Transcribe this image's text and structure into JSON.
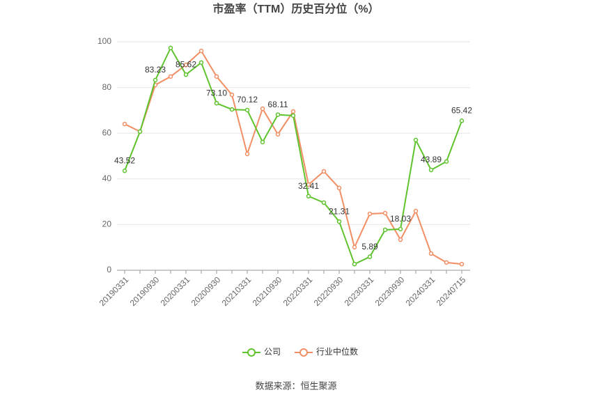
{
  "chart_data": {
    "type": "line",
    "title": "市盈率（TTM）历史百分位（%）",
    "source": "数据来源：恒生聚源",
    "categories": [
      "20190331",
      null,
      "20190930",
      null,
      "20200331",
      null,
      "20200930",
      null,
      "20210331",
      null,
      "20210930",
      null,
      "20220331",
      null,
      "20220930",
      null,
      "20230331",
      null,
      "20230930",
      null,
      "20240331",
      null,
      "20240715"
    ],
    "series": [
      {
        "name": "公司",
        "color": "#5fc32e",
        "values": [
          43.52,
          60.7,
          83.23,
          97.3,
          85.62,
          90.9,
          73.1,
          70.4,
          70.12,
          56.1,
          68.11,
          67.7,
          32.41,
          29.6,
          21.31,
          2.7,
          5.89,
          17.7,
          18.03,
          57.0,
          43.89,
          47.6,
          65.42
        ],
        "value_labels": [
          "43.52",
          null,
          "83.23",
          null,
          "85.62",
          null,
          "73.10",
          null,
          "70.12",
          null,
          "68.11",
          null,
          "32.41",
          null,
          "21.31",
          null,
          "5.89",
          null,
          "18.03",
          null,
          "43.89",
          null,
          "65.42"
        ]
      },
      {
        "name": "行业中位数",
        "color": "#f28e63",
        "values": [
          64.0,
          60.7,
          81.1,
          84.8,
          89.9,
          96.0,
          84.8,
          76.8,
          50.9,
          70.7,
          59.5,
          69.5,
          37.5,
          43.3,
          36.0,
          10.1,
          24.7,
          25.0,
          13.4,
          25.9,
          7.3,
          3.4,
          2.7
        ]
      }
    ],
    "ylim": [
      0,
      100
    ],
    "yticks": [
      0,
      20,
      40,
      60,
      80,
      100
    ],
    "grid": true,
    "legend": "bottom"
  }
}
